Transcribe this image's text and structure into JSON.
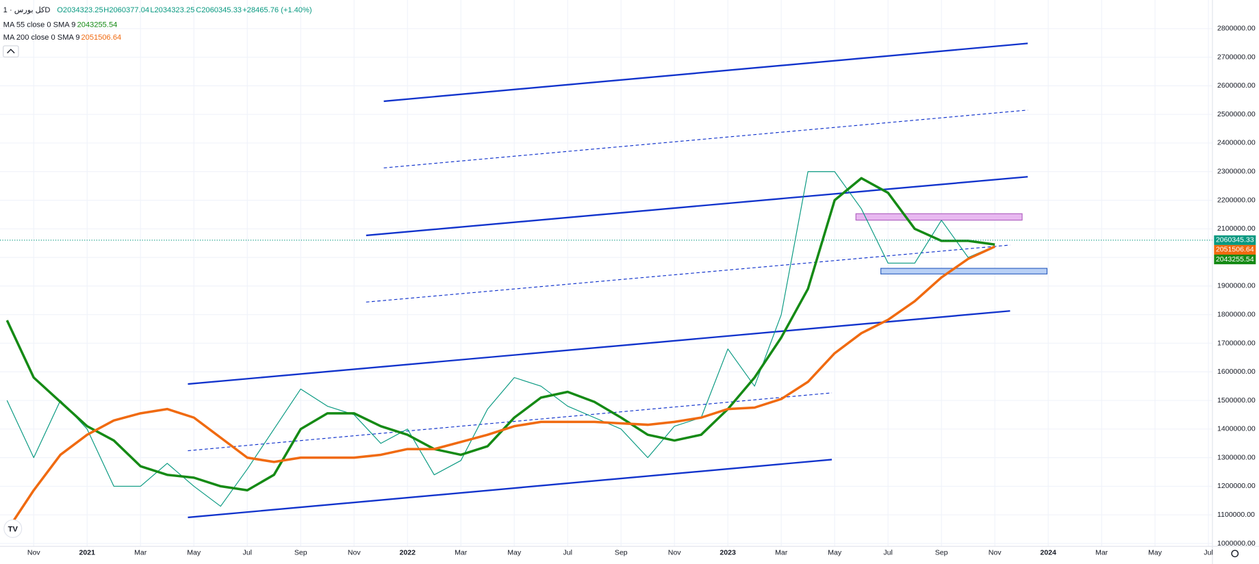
{
  "chart_data": {
    "type": "line",
    "symbol": "کل بورس · 1D",
    "ohlc": [
      "O2034323.25",
      "H2060377.04",
      "L2034323.25",
      "C2060345.33"
    ],
    "change": "+28465.76 (+1.40%)",
    "categories": [
      null,
      "Nov",
      null,
      "2021",
      null,
      "Mar",
      null,
      "May",
      null,
      "Jul",
      null,
      "Sep",
      null,
      "Nov",
      null,
      "2022",
      null,
      "Mar",
      null,
      "May",
      null,
      "Jul",
      null,
      "Sep",
      null,
      "Nov",
      null,
      "2023",
      null,
      "Mar",
      null,
      "May",
      null,
      "Jul",
      null,
      "Sep",
      null,
      "Nov",
      null,
      "2024",
      null,
      "Mar",
      null,
      "May",
      null,
      "Jul"
    ],
    "series": [
      {
        "name": "کل بورس",
        "color": "#089981",
        "values": [
          1500000,
          1300000,
          1500000,
          1400000,
          1200000,
          1200000,
          1280000,
          1200000,
          1130000,
          1260000,
          1400000,
          1540000,
          1480000,
          1450000,
          1350000,
          1400000,
          1240000,
          1290000,
          1470000,
          1580000,
          1550000,
          1480000,
          1440000,
          1400000,
          1300000,
          1410000,
          1440000,
          1680000,
          1550000,
          1800000,
          2300000,
          2300000,
          2170000,
          1980000,
          1980000,
          2130000,
          2000000,
          2040000,
          null,
          null,
          null,
          null,
          null,
          null,
          null,
          null
        ],
        "last": 2060345.33,
        "last_label": "2060345.33",
        "tag_color": "#089981"
      },
      {
        "name": "MA 55 close 0 SMA 9",
        "color": "#158a15",
        "values": [
          1780000,
          1580000,
          1495000,
          1410000,
          1360000,
          1270000,
          1240000,
          1230000,
          1200000,
          1186000,
          1240000,
          1400000,
          1455000,
          1455000,
          1410000,
          1380000,
          1330000,
          1310000,
          1340000,
          1440000,
          1510000,
          1530000,
          1495000,
          1440000,
          1380000,
          1360000,
          1380000,
          1470000,
          1580000,
          1720000,
          1890000,
          2200000,
          2277000,
          2226000,
          2100000,
          2058000,
          2058000,
          2045000,
          null,
          null,
          null,
          null,
          null,
          null,
          null,
          null
        ],
        "last": 2043255.54,
        "last_label": "2043255.54",
        "tag_color": "#158a15"
      },
      {
        "name": "MA 200 close 0 SMA 9",
        "color": "#f06a10",
        "values": [
          1045000,
          1186000,
          1310000,
          1380000,
          1430000,
          1455000,
          1470000,
          1440000,
          1370000,
          1300000,
          1285000,
          1300000,
          1300000,
          1300000,
          1310000,
          1330000,
          1330000,
          1355000,
          1380000,
          1410000,
          1425000,
          1425000,
          1425000,
          1420000,
          1415000,
          1425000,
          1440000,
          1470000,
          1475000,
          1505000,
          1565000,
          1665000,
          1735000,
          1782000,
          1847000,
          1930000,
          1995000,
          2038000,
          null,
          null,
          null,
          null,
          null,
          null,
          null,
          null
        ],
        "last": 2051506.64,
        "last_label": "2051506.64",
        "tag_color": "#f06a10"
      }
    ],
    "ylim": [
      990000,
      2900000
    ],
    "yticks": [
      {
        "value": 1000000,
        "label": "1000000.00"
      },
      {
        "value": 1100000,
        "label": "1100000.00"
      },
      {
        "value": 1200000,
        "label": "1200000.00"
      },
      {
        "value": 1300000,
        "label": "1300000.00"
      },
      {
        "value": 1400000,
        "label": "1400000.00"
      },
      {
        "value": 1500000,
        "label": "1500000.00"
      },
      {
        "value": 1600000,
        "label": "1600000.00"
      },
      {
        "value": 1700000,
        "label": "1700000.00"
      },
      {
        "value": 1800000,
        "label": "1800000.00"
      },
      {
        "value": 1900000,
        "label": "1900000.00"
      },
      {
        "value": 2000000,
        "label": "2000000.00"
      },
      {
        "value": 2100000,
        "label": "2100000.00"
      },
      {
        "value": 2200000,
        "label": "2200000.00"
      },
      {
        "value": 2300000,
        "label": "2300000.00"
      },
      {
        "value": 2400000,
        "label": "2400000.00"
      },
      {
        "value": 2500000,
        "label": "2500000.00"
      },
      {
        "value": 2600000,
        "label": "2600000.00"
      },
      {
        "value": 2700000,
        "label": "2700000.00"
      },
      {
        "value": 2800000,
        "label": "2800000.00"
      }
    ],
    "grid": true
  }
}
